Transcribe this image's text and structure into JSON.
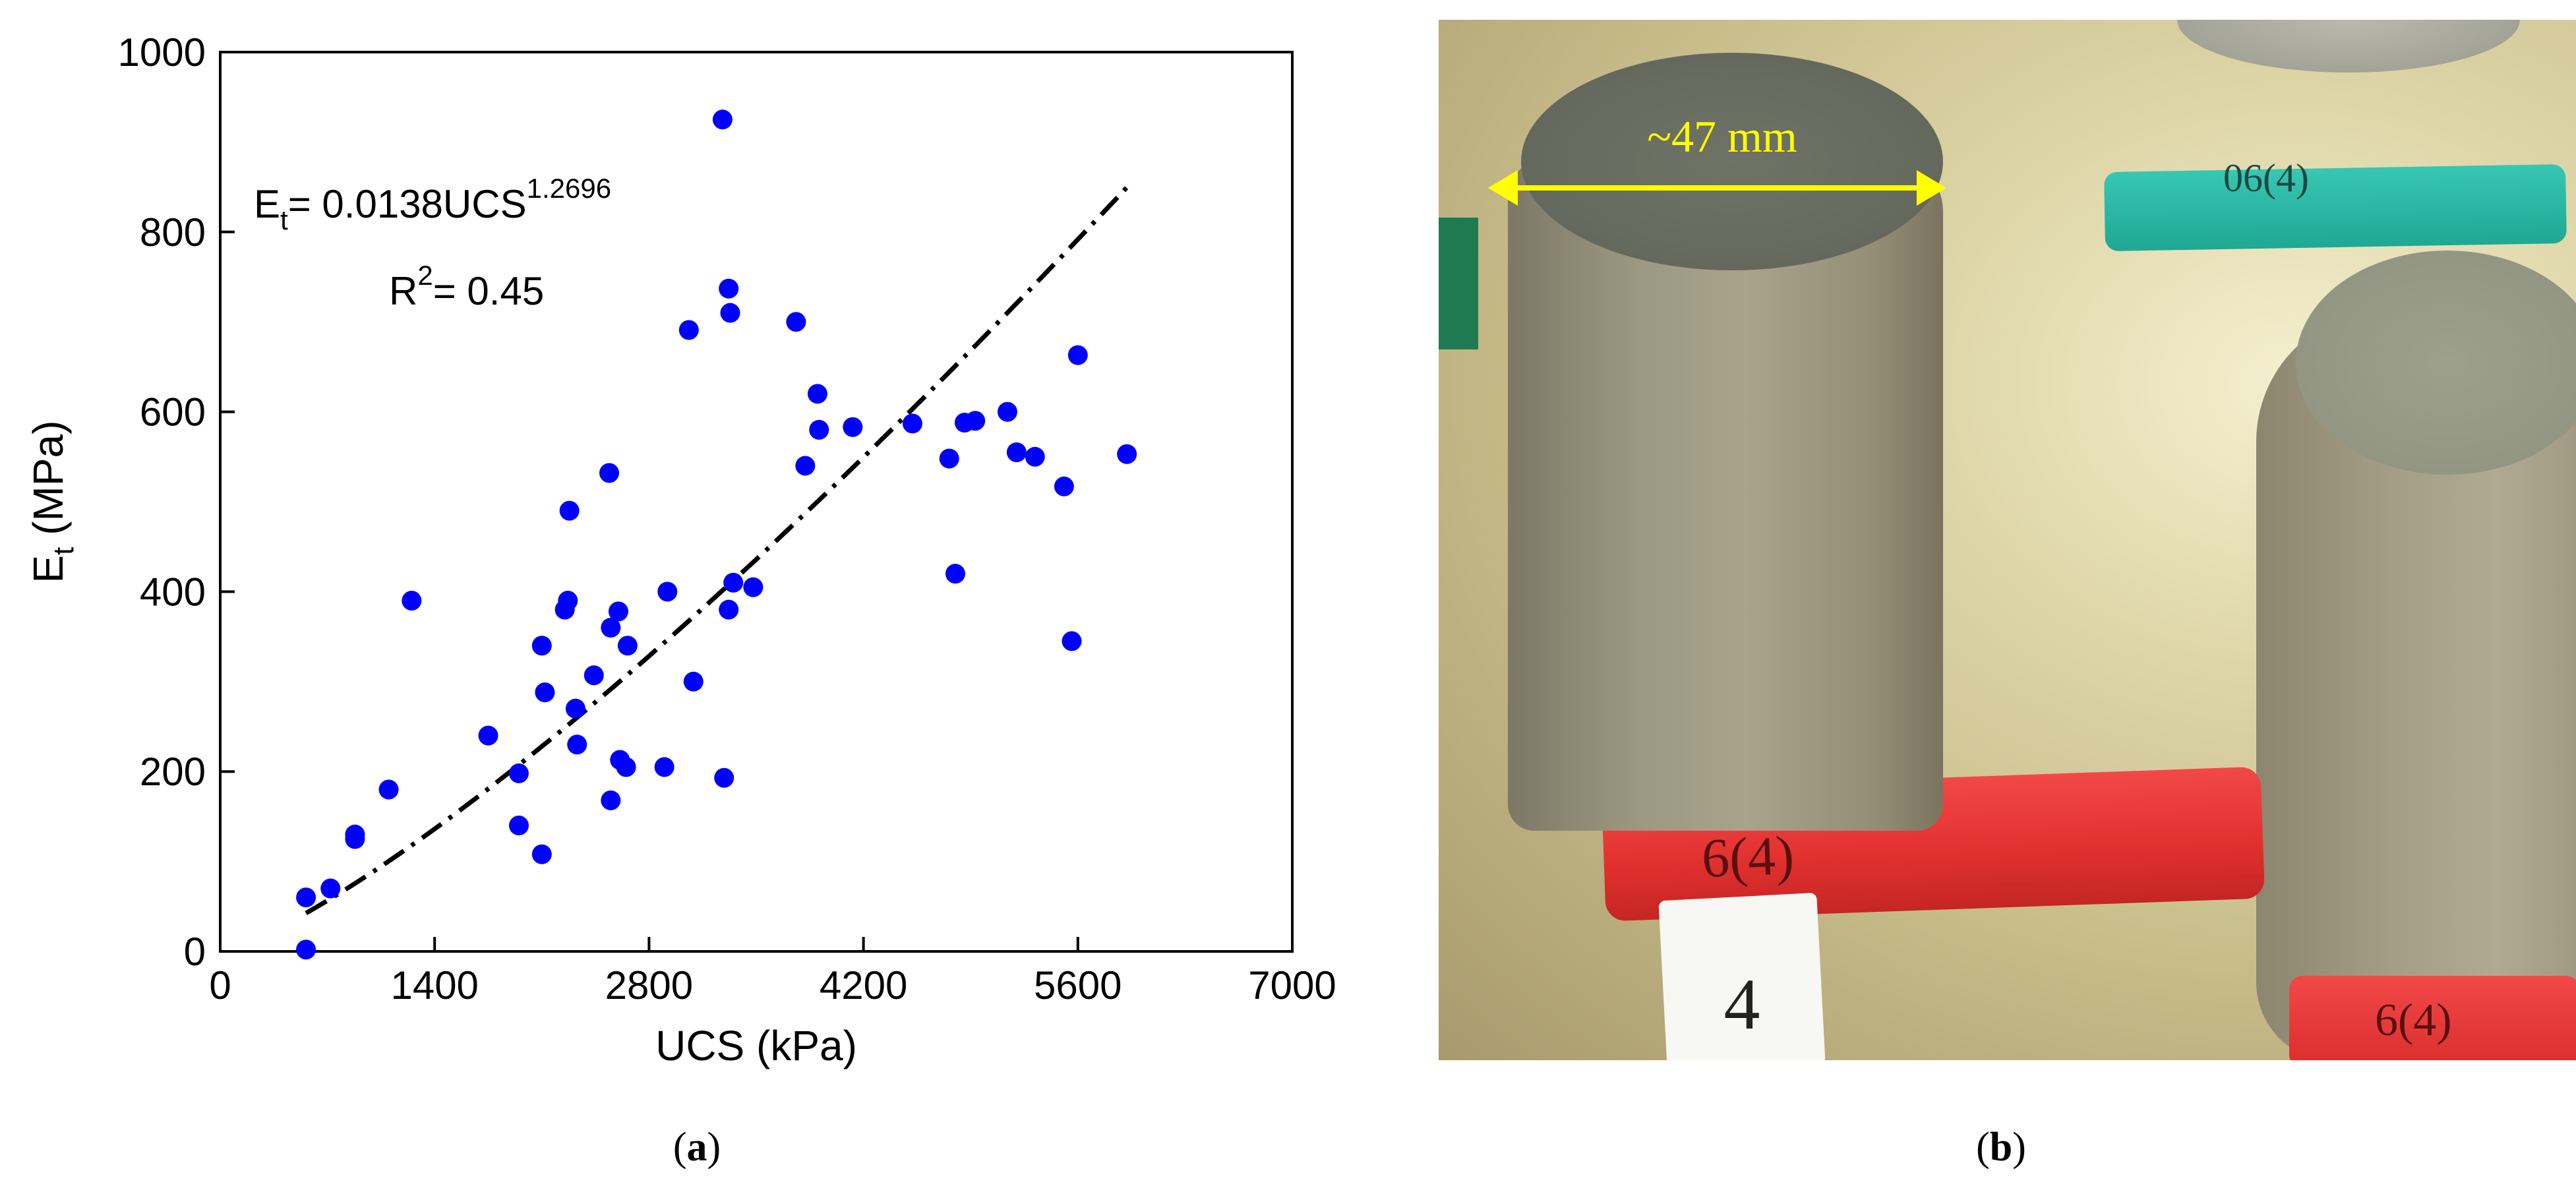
{
  "chart_data": {
    "type": "scatter",
    "xlabel": "UCS (kPa)",
    "ylabel_main": "E",
    "ylabel_sub": "t",
    "ylabel_unit": " (MPa)",
    "xlim": [
      0,
      7000
    ],
    "ylim": [
      0,
      1000
    ],
    "xticks": [
      0,
      1400,
      2800,
      4200,
      5600,
      7000
    ],
    "yticks": [
      0,
      200,
      400,
      600,
      800,
      1000
    ],
    "grid": false,
    "point_color": "#0000ff",
    "fit_color": "#000000",
    "fit": {
      "coefficient": 0.0138,
      "exponent": 1.2696,
      "x_start": 560,
      "x_end": 5920,
      "style": "dash-dot"
    },
    "equation": {
      "lhs_main": "E",
      "lhs_sub": "t",
      "rhs": "= 0.0138UCS",
      "rhs_sup": "1.2696"
    },
    "r2": {
      "main": "R",
      "sup": "2",
      "rest": "= 0.45"
    },
    "points": [
      {
        "x": 560,
        "y": 60
      },
      {
        "x": 560,
        "y": 2
      },
      {
        "x": 720,
        "y": 70
      },
      {
        "x": 880,
        "y": 125
      },
      {
        "x": 880,
        "y": 130
      },
      {
        "x": 1100,
        "y": 180
      },
      {
        "x": 1250,
        "y": 390
      },
      {
        "x": 1750,
        "y": 240
      },
      {
        "x": 1950,
        "y": 198
      },
      {
        "x": 1950,
        "y": 140
      },
      {
        "x": 2100,
        "y": 108
      },
      {
        "x": 2100,
        "y": 340
      },
      {
        "x": 2120,
        "y": 288
      },
      {
        "x": 2250,
        "y": 380
      },
      {
        "x": 2270,
        "y": 390
      },
      {
        "x": 2280,
        "y": 490
      },
      {
        "x": 2320,
        "y": 270
      },
      {
        "x": 2330,
        "y": 230
      },
      {
        "x": 2440,
        "y": 307
      },
      {
        "x": 2540,
        "y": 532
      },
      {
        "x": 2550,
        "y": 360
      },
      {
        "x": 2550,
        "y": 168
      },
      {
        "x": 2600,
        "y": 378
      },
      {
        "x": 2610,
        "y": 213
      },
      {
        "x": 2650,
        "y": 205
      },
      {
        "x": 2660,
        "y": 340
      },
      {
        "x": 2900,
        "y": 205
      },
      {
        "x": 2920,
        "y": 400
      },
      {
        "x": 3060,
        "y": 691
      },
      {
        "x": 3090,
        "y": 300
      },
      {
        "x": 3280,
        "y": 925
      },
      {
        "x": 3290,
        "y": 193
      },
      {
        "x": 3320,
        "y": 737
      },
      {
        "x": 3330,
        "y": 710
      },
      {
        "x": 3320,
        "y": 380
      },
      {
        "x": 3350,
        "y": 410
      },
      {
        "x": 3480,
        "y": 405
      },
      {
        "x": 3760,
        "y": 700
      },
      {
        "x": 3820,
        "y": 540
      },
      {
        "x": 3900,
        "y": 620
      },
      {
        "x": 3910,
        "y": 580
      },
      {
        "x": 4130,
        "y": 583
      },
      {
        "x": 4520,
        "y": 587
      },
      {
        "x": 4760,
        "y": 548
      },
      {
        "x": 4800,
        "y": 420
      },
      {
        "x": 4860,
        "y": 588
      },
      {
        "x": 4930,
        "y": 590
      },
      {
        "x": 5140,
        "y": 600
      },
      {
        "x": 5200,
        "y": 555
      },
      {
        "x": 5320,
        "y": 550
      },
      {
        "x": 5510,
        "y": 517
      },
      {
        "x": 5560,
        "y": 345
      },
      {
        "x": 5600,
        "y": 663
      },
      {
        "x": 5920,
        "y": 553
      }
    ]
  },
  "captions": {
    "a_open": "(",
    "a_letter": "a",
    "a_close": ")",
    "b_open": "(",
    "b_letter": "b",
    "b_close": ")"
  },
  "photo": {
    "dimension_label": "~47 mm",
    "arrow_color": "#ffff00",
    "tag_text": "4",
    "label_red_text": "6(4)",
    "label_teal_text": "06(4)",
    "label_red_right_text": "6(4)"
  }
}
